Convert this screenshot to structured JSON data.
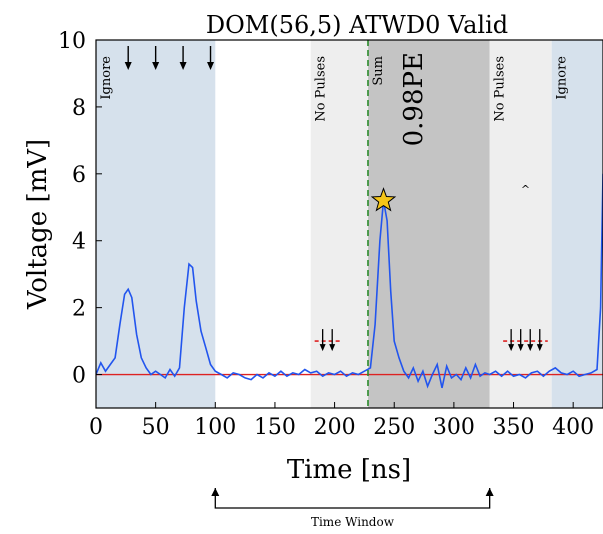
{
  "chart_data": {
    "type": "line",
    "title": "DOM(56,5) ATWD0 Valid",
    "xlabel": "Time [ns]",
    "ylabel": "Voltage [mV]",
    "xlim": [
      0,
      425
    ],
    "ylim": [
      -1,
      10
    ],
    "xticks": [
      "0",
      "50",
      "100",
      "150",
      "200",
      "250",
      "300",
      "350",
      "400"
    ],
    "yticks": [
      "0",
      "2",
      "4",
      "6",
      "8",
      "10"
    ],
    "grid": false,
    "colors": {
      "waveform": "#2255ee",
      "baseline": "#dd2222",
      "ignore_region": "#d6e1ec",
      "no_pulses_region": "#eeeeee",
      "sum_region": "#c4c4c4",
      "marker_line": "#2a8a2a",
      "star": "#f5c518"
    },
    "series": [
      {
        "points": [
          [
            0,
            0.0
          ],
          [
            4,
            0.35
          ],
          [
            8,
            0.1
          ],
          [
            12,
            0.3
          ],
          [
            16,
            0.5
          ],
          [
            20,
            1.5
          ],
          [
            24,
            2.4
          ],
          [
            27,
            2.55
          ],
          [
            30,
            2.3
          ],
          [
            34,
            1.2
          ],
          [
            38,
            0.5
          ],
          [
            42,
            0.2
          ],
          [
            46,
            0.0
          ],
          [
            50,
            0.1
          ],
          [
            54,
            0.0
          ],
          [
            58,
            -0.1
          ],
          [
            62,
            0.15
          ],
          [
            66,
            -0.05
          ],
          [
            70,
            0.2
          ],
          [
            74,
            2.0
          ],
          [
            78,
            3.3
          ],
          [
            81,
            3.2
          ],
          [
            84,
            2.2
          ],
          [
            88,
            1.3
          ],
          [
            92,
            0.8
          ],
          [
            96,
            0.3
          ],
          [
            100,
            0.1
          ],
          [
            105,
            0.0
          ],
          [
            110,
            -0.1
          ],
          [
            115,
            0.05
          ],
          [
            120,
            0.0
          ],
          [
            125,
            -0.1
          ],
          [
            130,
            -0.15
          ],
          [
            135,
            0.0
          ],
          [
            140,
            -0.1
          ],
          [
            145,
            0.05
          ],
          [
            150,
            -0.05
          ],
          [
            155,
            0.1
          ],
          [
            160,
            -0.05
          ],
          [
            165,
            0.05
          ],
          [
            170,
            0.0
          ],
          [
            175,
            0.15
          ],
          [
            180,
            0.05
          ],
          [
            185,
            0.1
          ],
          [
            190,
            -0.05
          ],
          [
            195,
            0.05
          ],
          [
            200,
            0.0
          ],
          [
            205,
            0.1
          ],
          [
            210,
            -0.05
          ],
          [
            215,
            0.05
          ],
          [
            220,
            0.0
          ],
          [
            225,
            0.1
          ],
          [
            230,
            0.2
          ],
          [
            234,
            1.5
          ],
          [
            238,
            4.0
          ],
          [
            241,
            5.2
          ],
          [
            244,
            4.6
          ],
          [
            247,
            2.5
          ],
          [
            250,
            1.0
          ],
          [
            254,
            0.5
          ],
          [
            258,
            0.1
          ],
          [
            262,
            -0.1
          ],
          [
            266,
            0.2
          ],
          [
            270,
            -0.2
          ],
          [
            274,
            0.1
          ],
          [
            278,
            -0.35
          ],
          [
            282,
            0.0
          ],
          [
            286,
            0.3
          ],
          [
            290,
            -0.4
          ],
          [
            294,
            0.25
          ],
          [
            298,
            -0.1
          ],
          [
            302,
            0.0
          ],
          [
            306,
            -0.15
          ],
          [
            310,
            0.2
          ],
          [
            314,
            -0.1
          ],
          [
            318,
            0.3
          ],
          [
            322,
            -0.05
          ],
          [
            326,
            0.05
          ],
          [
            330,
            0.0
          ],
          [
            335,
            0.1
          ],
          [
            340,
            -0.05
          ],
          [
            345,
            0.1
          ],
          [
            350,
            -0.05
          ],
          [
            355,
            0.0
          ],
          [
            360,
            -0.1
          ],
          [
            365,
            0.05
          ],
          [
            370,
            0.1
          ],
          [
            375,
            -0.05
          ],
          [
            380,
            0.1
          ],
          [
            385,
            0.2
          ],
          [
            390,
            0.05
          ],
          [
            395,
            0.0
          ],
          [
            400,
            0.1
          ],
          [
            405,
            -0.05
          ],
          [
            410,
            0.0
          ],
          [
            415,
            0.05
          ],
          [
            420,
            0.15
          ],
          [
            423,
            2.0
          ],
          [
            425,
            6.0
          ]
        ]
      }
    ],
    "baseline_y": 0,
    "regions": [
      {
        "kind": "ignore",
        "label": "Ignore",
        "x0": 0,
        "x1": 100
      },
      {
        "kind": "no_pulses",
        "label": "No Pulses",
        "x0": 180,
        "x1": 228
      },
      {
        "kind": "sum",
        "label": "Sum",
        "x0": 228,
        "x1": 330
      },
      {
        "kind": "no_pulses",
        "label": "No Pulses",
        "x0": 330,
        "x1": 382
      },
      {
        "kind": "ignore",
        "label": "Ignore",
        "x0": 382,
        "x1": 425
      }
    ],
    "sum_value_label": "0.98PE",
    "marker_line_x": 228,
    "star_point": {
      "x": 241,
      "y": 5.2
    },
    "ignored_pulse_times": [
      27,
      50,
      73,
      96
    ],
    "dashed_marks": [
      {
        "y": 1.0,
        "times": [
          190,
          198
        ]
      },
      {
        "y": 1.0,
        "times": [
          348,
          356,
          364,
          372
        ]
      }
    ],
    "caret_mark": {
      "x": 360,
      "y": 5.6,
      "label": "^"
    },
    "time_window": {
      "label": "Time Window",
      "x0": 100,
      "x1": 330
    }
  }
}
